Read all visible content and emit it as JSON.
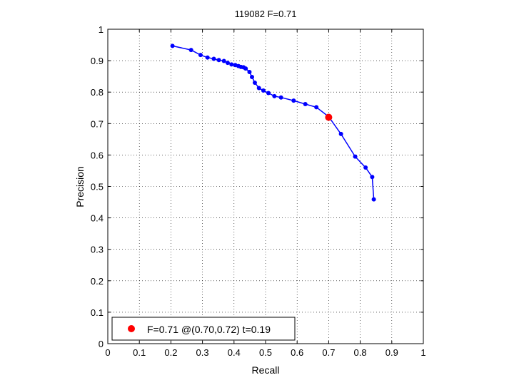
{
  "chart_data": {
    "type": "line",
    "title": "119082 F=0.71",
    "xlabel": "Recall",
    "ylabel": "Precision",
    "xlim": [
      0,
      1
    ],
    "ylim": [
      0,
      1
    ],
    "xticks": [
      "0",
      "0.1",
      "0.2",
      "0.3",
      "0.4",
      "0.5",
      "0.6",
      "0.7",
      "0.8",
      "0.9",
      "1"
    ],
    "yticks": [
      "0",
      "0.1",
      "0.2",
      "0.3",
      "0.4",
      "0.5",
      "0.6",
      "0.7",
      "0.8",
      "0.9",
      "1"
    ],
    "grid": true,
    "legend_position": "bottom-left",
    "series": [
      {
        "color": "#0000ff",
        "x": [
          0.205,
          0.264,
          0.294,
          0.316,
          0.336,
          0.352,
          0.368,
          0.38,
          0.392,
          0.404,
          0.414,
          0.422,
          0.43,
          0.437,
          0.449,
          0.457,
          0.466,
          0.479,
          0.493,
          0.509,
          0.528,
          0.549,
          0.589,
          0.626,
          0.661,
          0.7,
          0.739,
          0.784,
          0.817,
          0.838,
          0.843
        ],
        "y": [
          0.947,
          0.934,
          0.918,
          0.91,
          0.906,
          0.902,
          0.899,
          0.893,
          0.888,
          0.886,
          0.883,
          0.88,
          0.879,
          0.875,
          0.864,
          0.848,
          0.83,
          0.813,
          0.805,
          0.797,
          0.787,
          0.783,
          0.773,
          0.762,
          0.752,
          0.722,
          0.667,
          0.595,
          0.56,
          0.53,
          0.459
        ]
      }
    ],
    "highlight_point": {
      "x": 0.7,
      "y": 0.72,
      "color": "#ff0000",
      "label": "F=0.71 @(0.70,0.72) t=0.19"
    }
  }
}
